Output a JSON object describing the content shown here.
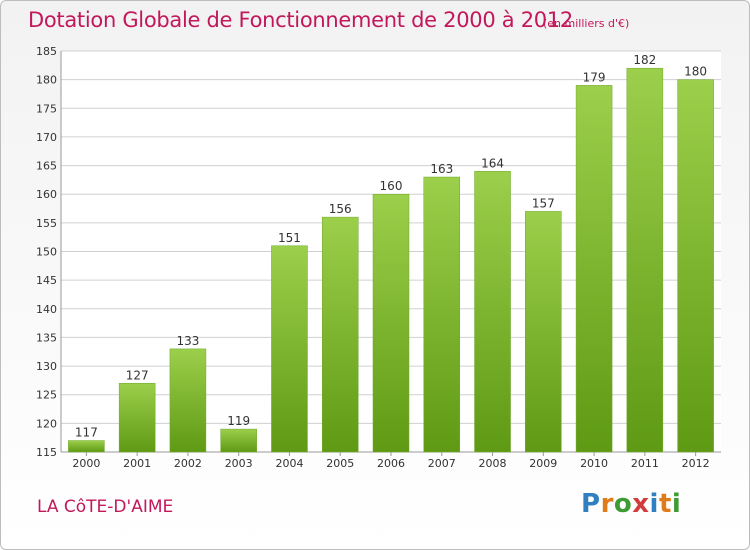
{
  "title": "Dotation Globale de Fonctionnement de 2000 à 2012",
  "subtitle": "(en milliers d'€)",
  "place": "LA CôTE-D'AIME",
  "logo": "Proxiti",
  "colors": {
    "bar_top": "#9ccf4b",
    "bar_bottom": "#5f9a14",
    "title": "#c2185b",
    "grid": "#d0d0d0"
  },
  "chart_data": {
    "type": "bar",
    "title": "Dotation Globale de Fonctionnement de 2000 à 2012",
    "subtitle": "(en milliers d'€)",
    "xlabel": "",
    "ylabel": "",
    "categories": [
      "2000",
      "2001",
      "2002",
      "2003",
      "2004",
      "2005",
      "2006",
      "2007",
      "2008",
      "2009",
      "2010",
      "2011",
      "2012"
    ],
    "values": [
      117,
      127,
      133,
      119,
      151,
      156,
      160,
      163,
      164,
      157,
      179,
      182,
      180
    ],
    "ylim": [
      115,
      185
    ],
    "yticks": [
      115,
      120,
      125,
      130,
      135,
      140,
      145,
      150,
      155,
      160,
      165,
      170,
      175,
      180,
      185
    ],
    "grid": true,
    "legend": "none"
  }
}
